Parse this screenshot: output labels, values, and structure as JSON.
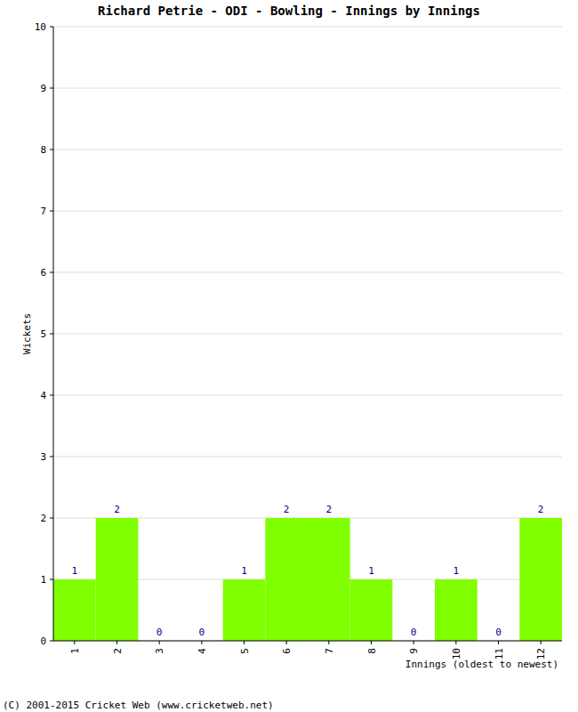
{
  "chart_data": {
    "type": "bar",
    "title": "Richard Petrie - ODI - Bowling - Innings by Innings",
    "y_label": "Wickets",
    "x_label": "Innings (oldest to newest)",
    "annotations": [
      "(C) 2001-2015 Cricket Web (www.cricketweb.net)"
    ],
    "categories": [
      "1",
      "2",
      "3",
      "4",
      "5",
      "6",
      "7",
      "8",
      "9",
      "10",
      "11",
      "12"
    ],
    "values": [
      1,
      2,
      0,
      0,
      1,
      2,
      2,
      1,
      0,
      1,
      0,
      2
    ],
    "color": "#80ff00",
    "ylim": [
      0,
      10
    ],
    "yticks": [
      0,
      1,
      2,
      3,
      4,
      5,
      6,
      7,
      8,
      9,
      10
    ],
    "grid": true,
    "data_labels": true
  }
}
